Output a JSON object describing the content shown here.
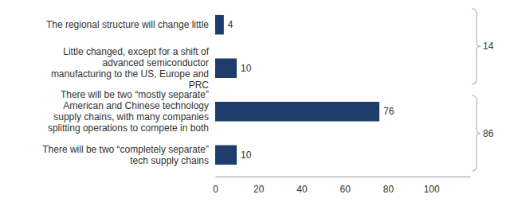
{
  "chart_data": {
    "type": "bar",
    "orientation": "horizontal",
    "categories": [
      "The regional structure will change little",
      "Little changed, except for a shift of advanced semiconductor manufacturing to the US, Europe and PRC",
      "There will be two “mostly separate” American and Chinese technology supply chains, with many companies splitting operations to compete in both",
      "There will be two “completely separate” tech supply chains"
    ],
    "values": [
      4,
      10,
      76,
      10
    ],
    "color": "#1f3d6c",
    "xlim": [
      0,
      118
    ],
    "xticks": [
      0,
      20,
      40,
      60,
      80,
      100
    ],
    "grid": false,
    "data_labels": true,
    "brackets": [
      {
        "value": 14,
        "first": 0,
        "last": 1
      },
      {
        "value": 86,
        "first": 2,
        "last": 3
      }
    ]
  }
}
